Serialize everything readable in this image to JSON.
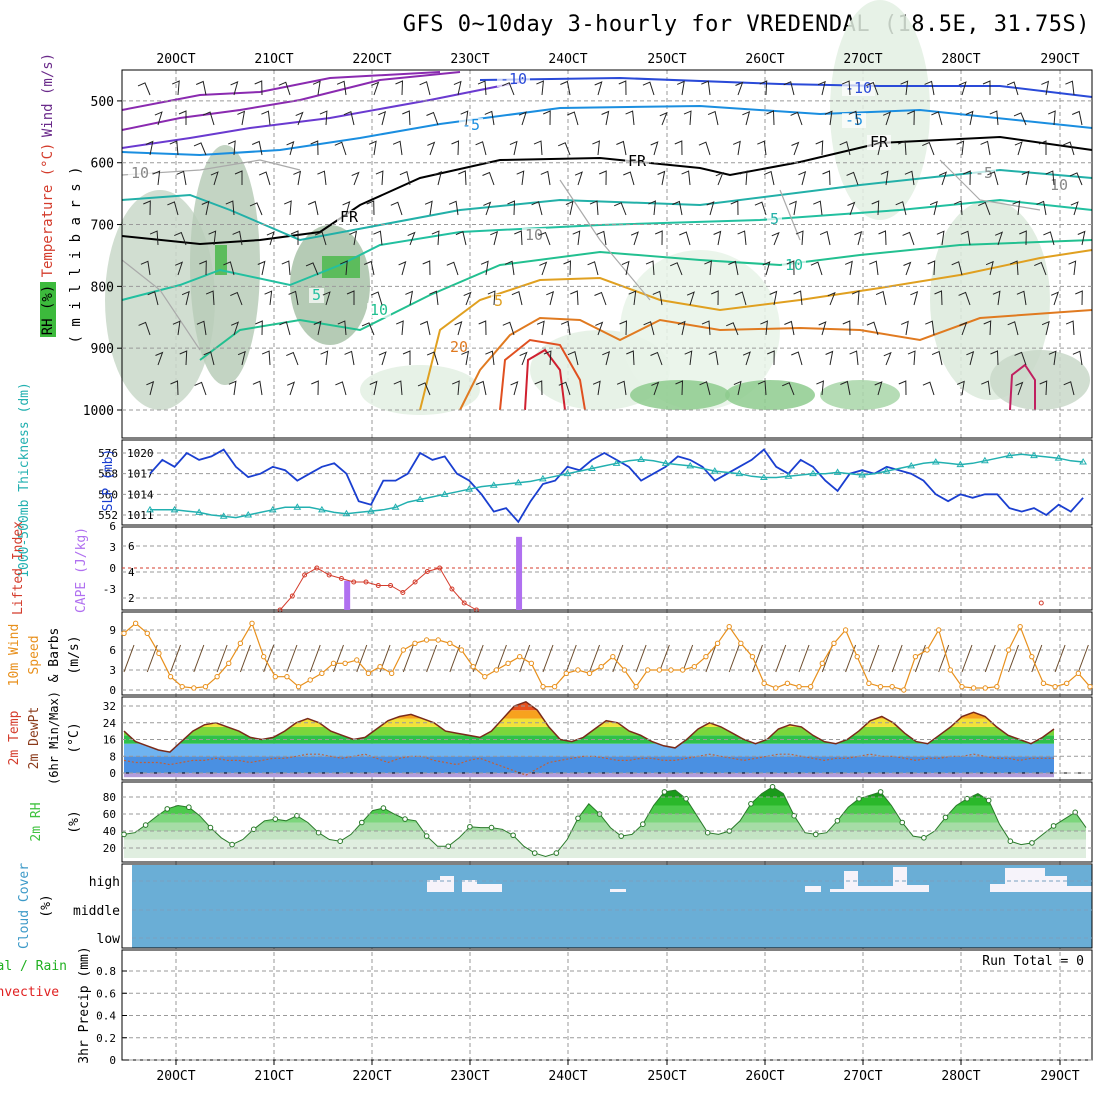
{
  "title": "GFS 0~10day 3-hourly for VREDENDAL (18.5E, 31.75S)",
  "colors": {
    "grid": "#9a9a9a",
    "rh": "#2ea82e",
    "temp": "#e06a2c",
    "wind": "#6a2a8a",
    "slp": "#1a3fd0",
    "thick": "#22b0b0",
    "cape": "#b070f0",
    "lifted": "#d43c2c",
    "wind10": "#e8901c",
    "tempfill": "#f08a1e",
    "rh2m": "#3fc23f",
    "cloud": "#6aaed6",
    "cloudlbl": "#3d9ac8",
    "precipTotal": "#20b020",
    "precipConv": "#e02020"
  },
  "chart_data": [
    {
      "type": "contour",
      "name": "upper-air cross section",
      "time_ticks_top": [
        "20OCT",
        "21OCT",
        "22OCT",
        "23OCT",
        "24OCT",
        "25OCT",
        "26OCT",
        "27OCT",
        "28OCT",
        "29OCT"
      ],
      "ylabel_parts": [
        "RH (%)",
        "Temperature (°C)",
        "Wind (m/s)"
      ],
      "yaxis_sub": "( m i l l i b a r s )",
      "yticks": [
        "500",
        "600",
        "700",
        "800",
        "900",
        "1000"
      ],
      "ylim": [
        450,
        1000
      ],
      "contour_labels": [
        "-10",
        "-10",
        "-5",
        "-5",
        "FR",
        "FR",
        "FR",
        "10",
        "10",
        "5",
        "5",
        "10",
        "-5",
        "5",
        "20",
        "10",
        "10"
      ]
    },
    {
      "type": "line",
      "name": "thickness and sea level pressure",
      "ylabel_left": "1000-500mb Thickness (dm)",
      "ylabel_right": "SLP (mb)",
      "yticks_left": [
        "576",
        "568",
        "560",
        "552"
      ],
      "yticks_right": [
        "1020",
        "1017",
        "1014",
        "1011"
      ],
      "ylim_left": [
        550,
        580
      ],
      "ylim_right": [
        1009,
        1022
      ],
      "series": [
        {
          "name": "SLP (mb)",
          "axis": "right",
          "values": [
            1017,
            1019,
            1018,
            1020,
            1019,
            1019.5,
            1020.5,
            1018,
            1016.5,
            1017,
            1018,
            1017.5,
            1016,
            1017,
            1018,
            1018.5,
            1017,
            1013,
            1012.5,
            1016,
            1016,
            1017,
            1020,
            1019,
            1019.5,
            1017,
            1016,
            1014,
            1011.5,
            1012,
            1010,
            1013,
            1015.5,
            1016,
            1018,
            1017.5,
            1019,
            1020,
            1019,
            1018,
            1016,
            1017,
            1018,
            1019.5,
            1019,
            1018,
            1016,
            1017,
            1018,
            1019,
            1020.5,
            1018,
            1017,
            1019,
            1018,
            1016,
            1014.5,
            1017,
            1017.5,
            1017,
            1018,
            1017.5,
            1017,
            1016,
            1014,
            1013,
            1014,
            1013.5,
            1014,
            1014,
            1012,
            1011.5,
            1012,
            1011,
            1012.5,
            1011.5,
            1013.5
          ]
        },
        {
          "name": "Thickness (dm)",
          "axis": "left",
          "values": [
            554,
            554,
            554,
            553.5,
            553,
            552,
            551.5,
            551,
            552,
            553,
            554,
            555,
            555,
            555,
            554,
            553,
            552.5,
            553,
            553.5,
            554,
            555,
            557,
            558,
            559,
            560,
            561,
            562,
            563,
            563.5,
            564,
            564.5,
            565,
            566,
            567,
            568,
            569,
            570,
            571,
            572,
            573,
            573.5,
            573,
            572,
            571.5,
            571,
            570,
            569,
            568.5,
            568,
            567,
            566.5,
            566.5,
            567,
            567.5,
            568,
            568,
            568.5,
            568,
            567.5,
            568,
            569,
            570,
            571,
            572,
            572.5,
            572,
            571.5,
            572,
            573,
            574,
            575,
            575.5,
            575,
            574.5,
            574,
            573,
            572.5
          ]
        }
      ]
    },
    {
      "type": "line",
      "name": "lifted index and CAPE",
      "ylabel_left": "Lifted Index",
      "ylabel_right": "CAPE (J/kg)",
      "yticks_left": [
        "-3",
        "0",
        "3",
        "6"
      ],
      "yticks_right": [
        "6",
        "4",
        "2"
      ],
      "ylim_left": [
        6,
        -6
      ],
      "series": [
        {
          "name": "Lifted Index",
          "axis": "left",
          "start_index": 11,
          "values": [
            6,
            4,
            1,
            0,
            1,
            1.5,
            2,
            2,
            2.5,
            2.5,
            3.5,
            2,
            0.5,
            0,
            3,
            5,
            6
          ]
        },
        {
          "name": "Lifted Index late",
          "axis": "left",
          "start_index": 73,
          "values": [
            5
          ]
        }
      ],
      "cape_bars": [
        {
          "index": 15,
          "value": 3
        },
        {
          "index": 29,
          "value": 7.5
        }
      ]
    },
    {
      "type": "line",
      "name": "10m wind speed and barbs",
      "ylabel": "10m Wind Speed (m/s) & Barbs",
      "yticks": [
        "9",
        "6",
        "3",
        "0"
      ],
      "ylim": [
        0,
        10
      ],
      "series": [
        {
          "name": "10m Wind Speed",
          "values": [
            8.5,
            10,
            8.5,
            5.5,
            2,
            0.5,
            0.3,
            0.5,
            2,
            4,
            7,
            10,
            5,
            2,
            2,
            0.5,
            1.5,
            2.5,
            4,
            4,
            4.5,
            2.5,
            3.5,
            2.5,
            6,
            7,
            7.5,
            7.5,
            7,
            6,
            3.5,
            2,
            3,
            4,
            5,
            4,
            0.5,
            0.5,
            2.5,
            3,
            2.5,
            3.5,
            5,
            3,
            0.5,
            3,
            3,
            3,
            3,
            3.5,
            5,
            7,
            9.5,
            7,
            5,
            1,
            0.3,
            1,
            0.5,
            0.5,
            4,
            7,
            9,
            5,
            1,
            0.5,
            0.5,
            0,
            5,
            6,
            9,
            3,
            0.5,
            0.3,
            0.3,
            0.5,
            6,
            9.5,
            5,
            1,
            0.5,
            1,
            2.5,
            0.5
          ]
        }
      ]
    },
    {
      "type": "area",
      "name": "2m temperature and dew point",
      "ylabel": "2m Temp 2m DewPt (6hr Min/Max) (°C)",
      "yticks": [
        "32",
        "24",
        "16",
        "8",
        "0"
      ],
      "ylim": [
        -2,
        36
      ],
      "series": [
        {
          "name": "2m Temp",
          "values": [
            20,
            15,
            13,
            11,
            10,
            15,
            20,
            23,
            24,
            22,
            20,
            17,
            16,
            17,
            20,
            24,
            26,
            24,
            20,
            18,
            16,
            17,
            21,
            25,
            27,
            28,
            26,
            24,
            20,
            19,
            18,
            17,
            20,
            26,
            32,
            34,
            30,
            22,
            16,
            15,
            17,
            21,
            25,
            24,
            20,
            18,
            15,
            13,
            12,
            16,
            21,
            24,
            22,
            19,
            16,
            14,
            16,
            21,
            23,
            22,
            18,
            15,
            14,
            16,
            20,
            25,
            27,
            24,
            19,
            15,
            14,
            18,
            22,
            27,
            29,
            27,
            22,
            18,
            16,
            14,
            17,
            21
          ]
        },
        {
          "name": "2m DewPt",
          "values": [
            6,
            5,
            5,
            5,
            4,
            5,
            6,
            6,
            7,
            6,
            6,
            5,
            6,
            7,
            7,
            8,
            9,
            9,
            8,
            7,
            8,
            9,
            7,
            5,
            7,
            8,
            8,
            6,
            5,
            4,
            6,
            7,
            5,
            3,
            1,
            -1,
            2,
            5,
            6,
            7,
            8,
            8,
            7,
            6,
            6,
            7,
            7,
            6,
            6,
            7,
            8,
            9,
            8,
            7,
            6,
            7,
            8,
            9,
            9,
            8,
            7,
            6,
            7,
            7,
            8,
            9,
            8,
            8,
            7,
            6,
            7,
            7,
            8,
            8,
            9,
            8,
            7,
            7,
            6,
            7,
            7,
            7
          ]
        }
      ]
    },
    {
      "type": "area",
      "name": "2m relative humidity",
      "ylabel": "2m RH (%)",
      "yticks": [
        "80",
        "60",
        "40",
        "20"
      ],
      "ylim": [
        6,
        100
      ],
      "series": [
        {
          "name": "2m RH",
          "values": [
            36,
            38,
            47,
            57,
            66,
            70,
            68,
            58,
            44,
            32,
            24,
            30,
            42,
            52,
            54,
            52,
            58,
            50,
            38,
            30,
            28,
            36,
            50,
            64,
            67,
            60,
            54,
            52,
            34,
            22,
            22,
            32,
            45,
            44,
            44,
            42,
            35,
            22,
            14,
            10,
            14,
            30,
            55,
            72,
            60,
            44,
            34,
            36,
            48,
            70,
            86,
            88,
            78,
            58,
            38,
            36,
            40,
            52,
            72,
            84,
            92,
            84,
            58,
            38,
            36,
            38,
            52,
            68,
            78,
            82,
            86,
            70,
            50,
            34,
            32,
            40,
            56,
            70,
            78,
            84,
            76,
            48,
            28,
            24,
            26,
            36,
            46,
            54,
            62,
            44
          ]
        }
      ]
    },
    {
      "type": "bar",
      "name": "cloud cover",
      "ylabel": "Cloud Cover (%)",
      "yticks": [
        "high",
        "middle",
        "low"
      ]
    },
    {
      "type": "bar",
      "name": "3hr precipitation",
      "ylabel_parts": [
        "Total / Rain",
        "Convective"
      ],
      "ylabel": "3hr Precip (mm)",
      "yticks": [
        "0.8",
        "0.6",
        "0.4",
        "0.2",
        "0"
      ],
      "ylim": [
        0,
        0.95
      ],
      "run_total": "Run Total = 0",
      "time_ticks_bottom": [
        "20OCT",
        "21OCT",
        "22OCT",
        "23OCT",
        "24OCT",
        "25OCT",
        "26OCT",
        "27OCT",
        "28OCT",
        "29OCT"
      ]
    }
  ]
}
